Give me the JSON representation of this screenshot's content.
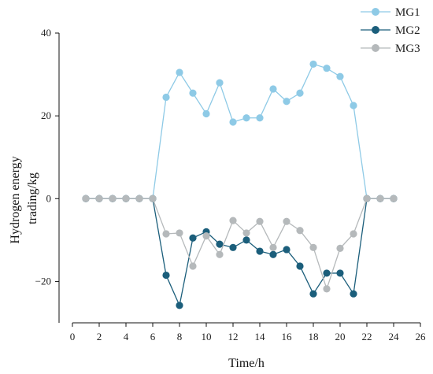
{
  "chart_data": {
    "type": "line",
    "xlabel": "Time/h",
    "ylabel_lines": [
      "Hydrogen energy",
      "trading/kg"
    ],
    "xlim": [
      0,
      26
    ],
    "ylim": [
      -30,
      40
    ],
    "xticks": [
      0,
      2,
      4,
      6,
      8,
      10,
      12,
      14,
      16,
      18,
      20,
      22,
      24,
      26
    ],
    "yticks": [
      -20,
      0,
      20,
      40
    ],
    "grid": false,
    "legend_position": "top-right",
    "x": [
      1,
      2,
      3,
      4,
      5,
      6,
      7,
      8,
      9,
      10,
      11,
      12,
      13,
      14,
      15,
      16,
      17,
      18,
      19,
      20,
      21,
      22,
      23,
      24
    ],
    "series": [
      {
        "name": "MG1",
        "color": "#8ecae6",
        "values": [
          0,
          0,
          0,
          0,
          0,
          0,
          24.5,
          30.5,
          25.5,
          20.5,
          28,
          18.5,
          19.5,
          19.5,
          26.5,
          23.5,
          25.5,
          32.5,
          31.5,
          29.5,
          22.5,
          0,
          0,
          0
        ]
      },
      {
        "name": "MG2",
        "color": "#1b5e7b",
        "values": [
          0,
          0,
          0,
          0,
          0,
          0,
          -18.5,
          -25.8,
          -9.5,
          -8,
          -11,
          -11.8,
          -10,
          -12.7,
          -13.5,
          -12.3,
          -16.3,
          -23,
          -18,
          -18,
          -23,
          0,
          0,
          0
        ]
      },
      {
        "name": "MG3",
        "color": "#b5b9bb",
        "values": [
          0,
          0,
          0,
          0,
          0,
          0,
          -8.5,
          -8.3,
          -16.3,
          -9,
          -13.5,
          -5.3,
          -8.3,
          -5.5,
          -11.8,
          -5.5,
          -7.7,
          -11.8,
          -21.8,
          -12,
          -8.5,
          0,
          0,
          0
        ]
      }
    ]
  }
}
